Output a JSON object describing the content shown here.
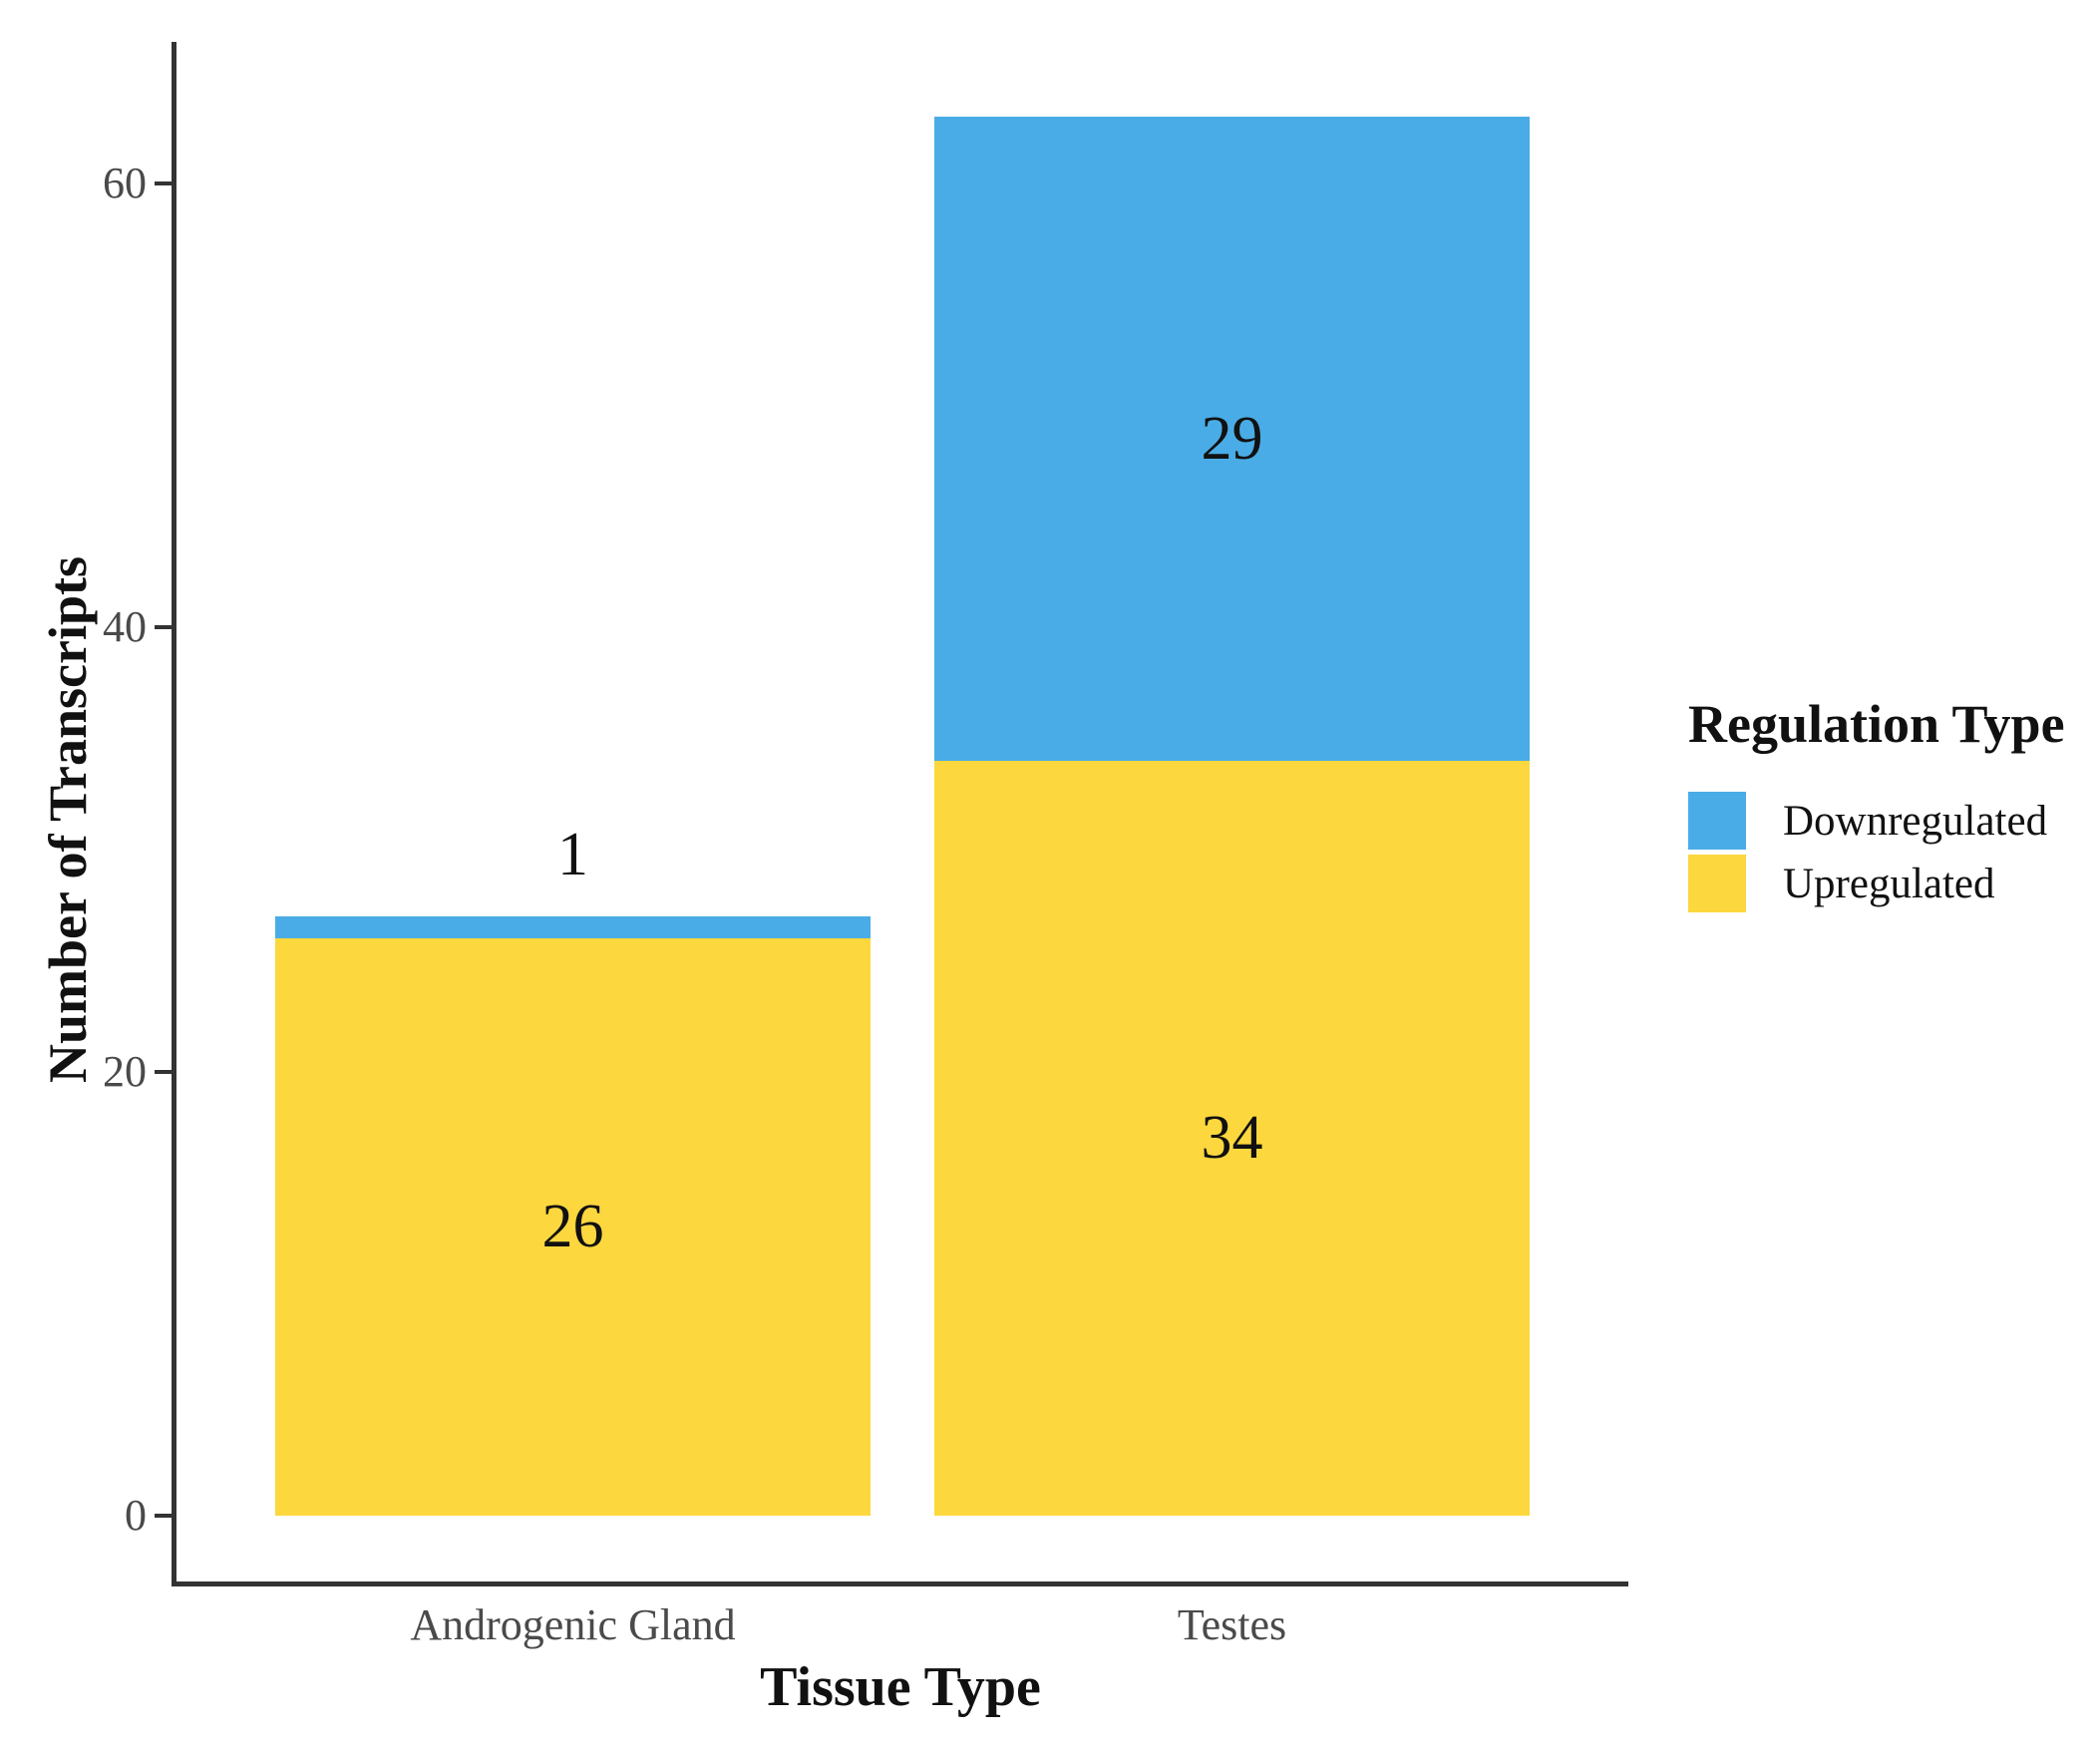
{
  "chart_data": {
    "type": "bar",
    "stacked": true,
    "title": "",
    "xlabel": "Tissue Type",
    "ylabel": "Number of Transcripts",
    "categories": [
      "Androgenic Gland",
      "Testes"
    ],
    "series": [
      {
        "name": "Downregulated",
        "color": "#4AACE6",
        "values": [
          1,
          29
        ]
      },
      {
        "name": "Upregulated",
        "color": "#FDD73E",
        "values": [
          26,
          34
        ]
      }
    ],
    "stack_totals": [
      27,
      63
    ],
    "value_labels_shown": [
      [
        1,
        29
      ],
      [
        26,
        34
      ]
    ],
    "yticks": [
      0,
      20,
      40,
      60
    ],
    "ylim": [
      0,
      63
    ],
    "grid": "off",
    "legend": {
      "title": "Regulation Type",
      "position": "right"
    },
    "axis_color": "#333333",
    "axis_text_color": "#4a4a4a"
  }
}
